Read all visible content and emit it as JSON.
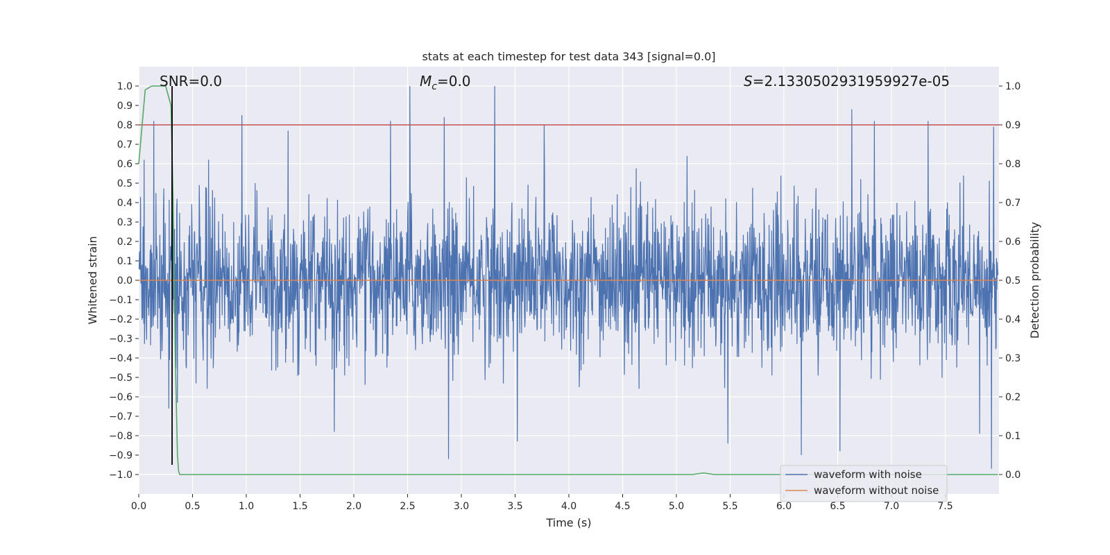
{
  "chart_data": {
    "type": "line",
    "title": "stats at each timestep for test data 343 [signal=0.0]",
    "xlabel": "Time (s)",
    "ylabel_left": "Whitened strain",
    "ylabel_right": "Detection probability",
    "xlim": [
      0,
      8
    ],
    "ylim_left": [
      -1.1,
      1.1
    ],
    "ylim_right": [
      -0.05,
      1.05
    ],
    "x_ticks": [
      "0.0",
      "0.5",
      "1.0",
      "1.5",
      "2.0",
      "2.5",
      "3.0",
      "3.5",
      "4.0",
      "4.5",
      "5.0",
      "5.5",
      "6.0",
      "6.5",
      "7.0",
      "7.5"
    ],
    "y_ticks_left": [
      "1.0",
      "0.9",
      "0.8",
      "0.7",
      "0.6",
      "0.5",
      "0.4",
      "0.3",
      "0.2",
      "0.1",
      "0.0",
      "-0.1",
      "-0.2",
      "-0.3",
      "-0.4",
      "-0.5",
      "-0.6",
      "-0.7",
      "-0.8",
      "-0.9",
      "-1.0"
    ],
    "y_ticks_right": [
      "1.0",
      "0.9",
      "0.8",
      "0.7",
      "0.6",
      "0.5",
      "0.4",
      "0.3",
      "0.2",
      "0.1",
      "0.0"
    ],
    "grid": true,
    "legend_position": "bottom-right",
    "annotations": {
      "snr": "SNR=0.0",
      "mc_symbol": "M",
      "mc_subscript": "c",
      "mc_value": "=0.0",
      "s_symbol": "S",
      "s_value": "=2.1330502931959927e-05"
    },
    "threshold_left": 0.8,
    "vertical_marker_x": 0.31,
    "series": [
      {
        "name": "waveform with noise",
        "color": "#4c72b0",
        "axis": "left",
        "kind": "noise",
        "x_range": [
          0,
          7.99
        ],
        "amplitude_typical": 0.45,
        "peaks": [
          [
            0.05,
            0.62
          ],
          [
            0.14,
            0.82
          ],
          [
            0.31,
            0.75
          ],
          [
            0.36,
            0.63
          ],
          [
            0.65,
            0.62
          ],
          [
            0.96,
            0.85
          ],
          [
            1.39,
            0.77
          ],
          [
            2.34,
            0.82
          ],
          [
            2.52,
            1.0
          ],
          [
            2.84,
            0.84
          ],
          [
            3.31,
            1.0
          ],
          [
            3.77,
            0.8
          ],
          [
            5.1,
            0.64
          ],
          [
            6.63,
            0.88
          ],
          [
            6.84,
            0.82
          ],
          [
            7.34,
            0.82
          ],
          [
            7.95,
            0.79
          ]
        ],
        "troughs": [
          [
            0.28,
            -0.66
          ],
          [
            0.36,
            -0.63
          ],
          [
            1.82,
            -0.78
          ],
          [
            2.88,
            -0.92
          ],
          [
            3.52,
            -0.83
          ],
          [
            5.48,
            -0.84
          ],
          [
            6.16,
            -0.9
          ],
          [
            6.52,
            -0.88
          ],
          [
            7.82,
            -0.79
          ],
          [
            7.93,
            -0.97
          ]
        ]
      },
      {
        "name": "waveform without noise",
        "color": "#dd8452",
        "axis": "left",
        "x": [
          0,
          7.99
        ],
        "y": [
          0.0,
          0.0
        ]
      },
      {
        "name": "detection probability",
        "color": "#55a868",
        "axis": "right",
        "x": [
          0.0,
          0.06,
          0.12,
          0.18,
          0.25,
          0.3,
          0.32,
          0.34,
          0.36,
          0.37,
          0.38,
          1.0,
          3.0,
          5.0,
          5.15,
          5.25,
          5.35,
          6.0,
          7.0,
          7.99
        ],
        "y": [
          0.8,
          0.99,
          1.0,
          1.0,
          1.0,
          0.95,
          0.7,
          0.3,
          0.05,
          0.01,
          0.0,
          0.0,
          0.0,
          0.0,
          0.0,
          0.004,
          0.0,
          0.0,
          0.0,
          0.0
        ]
      }
    ]
  }
}
